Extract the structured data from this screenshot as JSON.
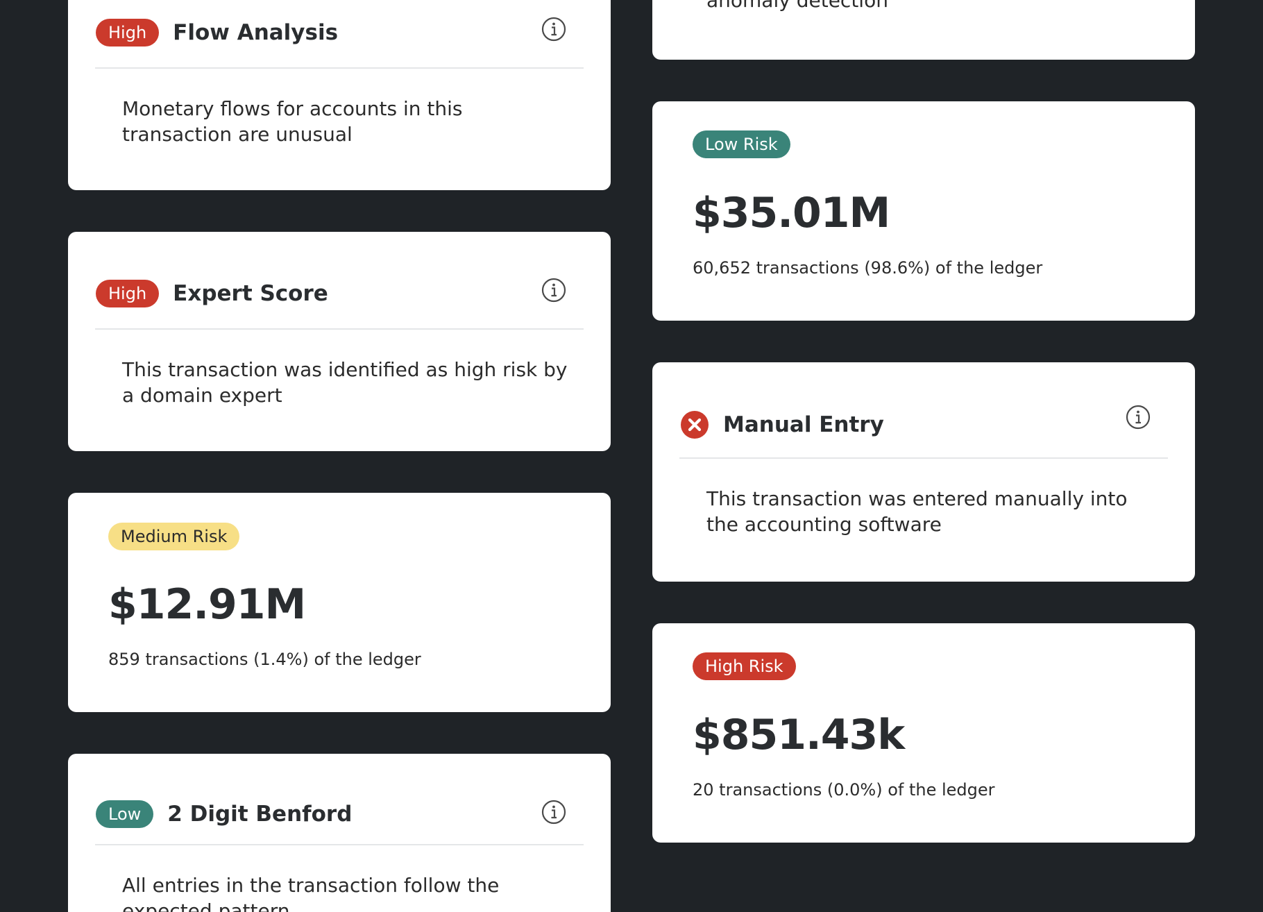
{
  "colors": {
    "background": "#1f2327",
    "card": "#ffffff",
    "high": "#cb3a2c",
    "low": "#3a8479",
    "medium": "#f7df86"
  },
  "left_column": {
    "flow_analysis": {
      "badge": "High",
      "title": "Flow Analysis",
      "description": "Monetary flows for accounts in this transaction are unusual",
      "icon": "info-icon"
    },
    "expert_score": {
      "badge": "High",
      "title": "Expert Score",
      "description": "This transaction was identified as high risk by a domain expert",
      "icon": "info-icon"
    },
    "medium_risk": {
      "badge": "Medium Risk",
      "amount": "$12.91M",
      "caption": "859 transactions (1.4%) of the ledger"
    },
    "benford": {
      "badge": "Low",
      "title": "2 Digit Benford",
      "description": "All entries in the transaction follow the expected pattern",
      "icon": "info-icon"
    }
  },
  "right_column": {
    "top_partial": {
      "description": "anomaly detection"
    },
    "low_risk": {
      "badge": "Low Risk",
      "amount": "$35.01M",
      "caption": "60,652 transactions (98.6%) of the ledger"
    },
    "manual_entry": {
      "status_icon": "x-circle-icon",
      "title": "Manual Entry",
      "description": "This transaction was entered manually into the accounting software",
      "icon": "info-icon"
    },
    "high_risk": {
      "badge": "High Risk",
      "amount": "$851.43k",
      "caption": "20 transactions (0.0%) of the ledger"
    }
  }
}
